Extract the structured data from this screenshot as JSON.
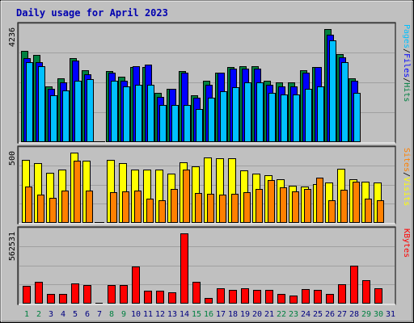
{
  "chart_data": {
    "type": "bar",
    "title": "Daily usage for April 2023",
    "categories": [
      "1",
      "2",
      "3",
      "4",
      "5",
      "6",
      "7",
      "8",
      "9",
      "10",
      "11",
      "12",
      "13",
      "14",
      "15",
      "16",
      "17",
      "18",
      "19",
      "20",
      "21",
      "22",
      "23",
      "24",
      "25",
      "26",
      "27",
      "28",
      "29",
      "30",
      "31"
    ],
    "weekend_days": [
      "1",
      "2",
      "8",
      "9",
      "15",
      "16",
      "22",
      "23",
      "29",
      "30"
    ],
    "panels": [
      {
        "id": "hits",
        "max_label": "4236",
        "ylim": [
          0,
          4236
        ],
        "right_label_parts": [
          "Pages",
          "Files",
          "Hits"
        ],
        "series": [
          {
            "name": "Hits",
            "color": "#008040",
            "values": [
              3420,
              3280,
              2100,
              2400,
              3150,
              2700,
              0,
              2650,
              2450,
              2800,
              2800,
              1850,
              2000,
              2650,
              1750,
              2300,
              2600,
              2800,
              2850,
              2850,
              2300,
              2250,
              2250,
              2700,
              2800,
              4236,
              3300,
              2400,
              null,
              null,
              null
            ]
          },
          {
            "name": "Files",
            "color": "#0000ff",
            "values": [
              3150,
              3000,
              2000,
              2250,
              3050,
              2550,
              0,
              2600,
              2300,
              2850,
              2900,
              1700,
              2000,
              2600,
              1650,
              2150,
              2600,
              2750,
              2750,
              2750,
              2150,
              2100,
              2100,
              2600,
              2800,
              4010,
              3180,
              2300,
              null,
              null,
              null
            ]
          },
          {
            "name": "Pages",
            "color": "#00c0ff",
            "values": [
              3000,
              2850,
              1750,
              1950,
              2300,
              2350,
              0,
              2300,
              2100,
              2150,
              2150,
              1400,
              1400,
              1400,
              1250,
              1650,
              1900,
              2050,
              2250,
              2250,
              1850,
              1800,
              1800,
              2000,
              2100,
              3800,
              3000,
              1850,
              null,
              null,
              null
            ]
          }
        ]
      },
      {
        "id": "visits",
        "max_label": "500",
        "ylim": [
          0,
          500
        ],
        "right_label_parts": [
          "Sites",
          "Visits"
        ],
        "series": [
          {
            "name": "Visits",
            "color": "#ffff00",
            "values": [
              448,
              425,
              358,
              381,
              500,
              440,
              0,
              448,
              425,
              378,
              381,
              381,
              350,
              430,
              400,
              466,
              458,
              458,
              371,
              350,
              340,
              313,
              265,
              260,
              278,
              290,
              385,
              313,
              291,
              286,
              null
            ]
          },
          {
            "name": "Sites",
            "color": "#ff8000",
            "values": [
              258,
              203,
              178,
              228,
              441,
              231,
              0,
              218,
              225,
              232,
              170,
              163,
              243,
              382,
              213,
              208,
              203,
              208,
              218,
              241,
              304,
              253,
              225,
              242,
              320,
              160,
              238,
              293,
              171,
              163,
              null
            ]
          }
        ]
      },
      {
        "id": "kbytes",
        "max_label": "562531",
        "ylim": [
          0,
          562531
        ],
        "right_label_parts": [
          "KBytes"
        ],
        "series": [
          {
            "name": "KBytes",
            "color": "#ff0000",
            "values": [
              144000,
              177000,
              75000,
              80000,
              160000,
              146000,
              0,
              146000,
              146000,
              297000,
              102000,
              102000,
              88000,
              562531,
              173000,
              44000,
              124000,
              111000,
              124000,
              111000,
              111000,
              80000,
              62000,
              116000,
              108000,
              80000,
              155000,
              304000,
              186000,
              124000,
              null
            ]
          }
        ]
      }
    ],
    "colors": {
      "panel_bg": "#c0c0c0",
      "title": "#0000b0",
      "weekday_label": "#000080",
      "weekend_label": "#008040"
    }
  }
}
